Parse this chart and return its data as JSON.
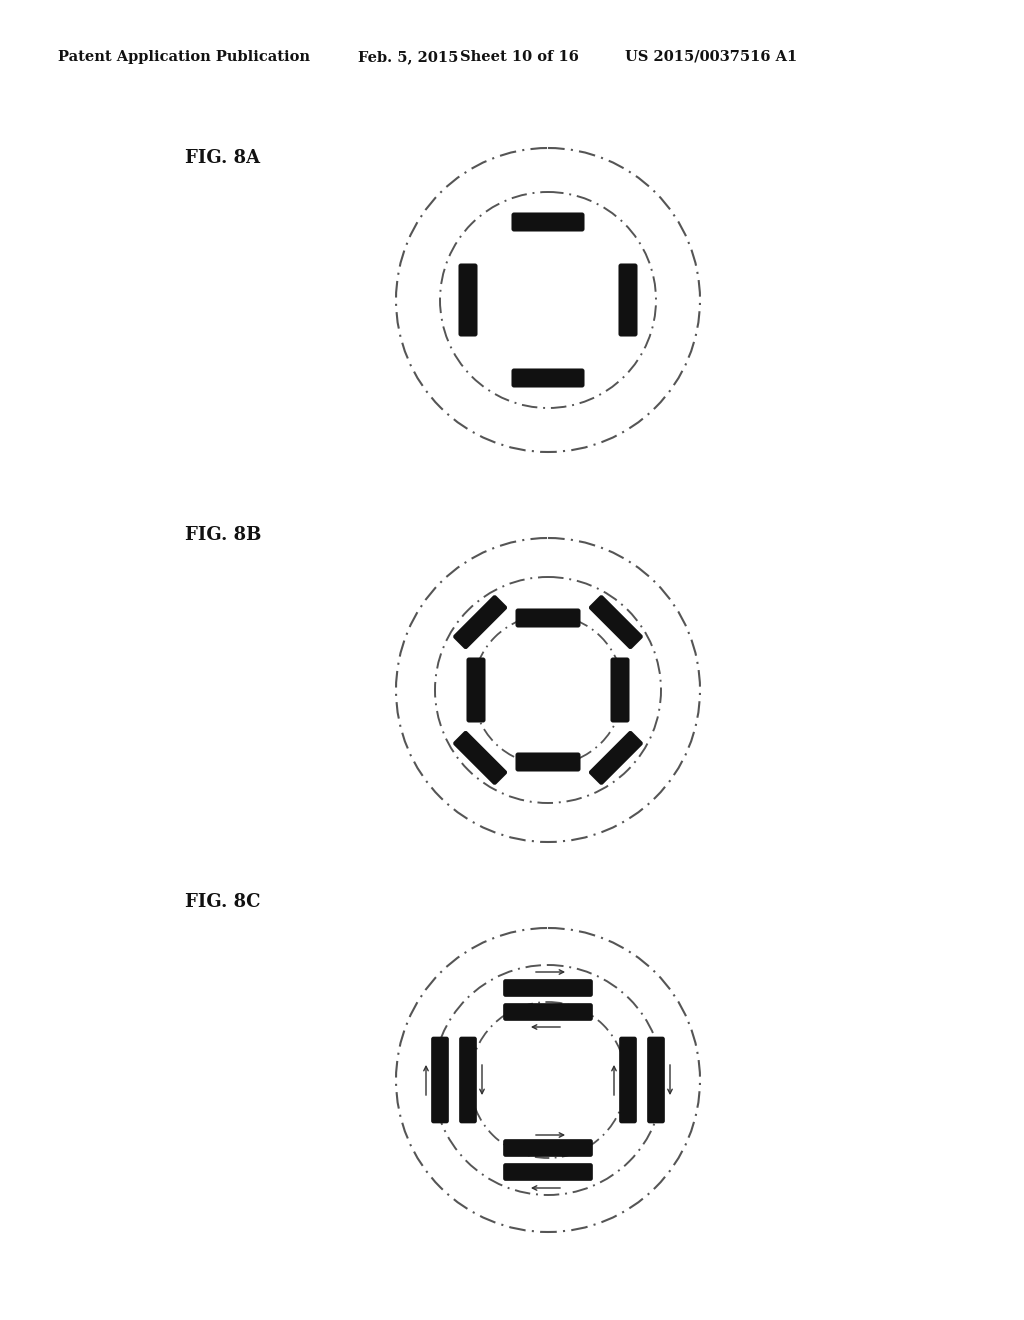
{
  "bg_color": "#ffffff",
  "header_text": "Patent Application Publication",
  "header_date": "Feb. 5, 2015",
  "header_sheet": "Sheet 10 of 16",
  "header_patent": "US 2015/0037516 A1",
  "fig8a_label": "FIG. 8A",
  "fig8b_label": "FIG. 8B",
  "fig8c_label": "FIG. 8C",
  "rod_color": "#111111",
  "circle_color": "#555555",
  "arrow_color": "#333333"
}
